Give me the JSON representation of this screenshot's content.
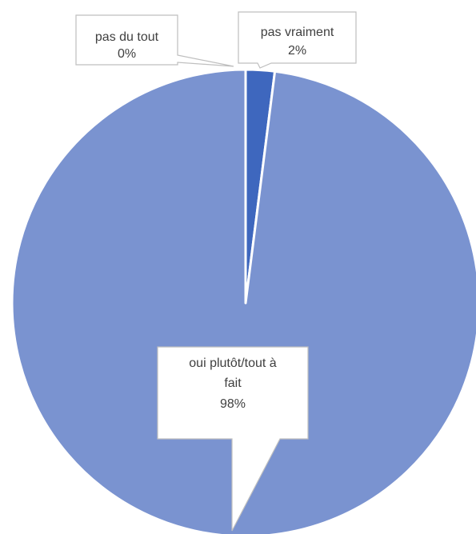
{
  "chart_data": {
    "type": "pie",
    "title": "",
    "categories": [
      "pas du tout",
      "pas vraiment",
      "oui plutôt/tout à fait"
    ],
    "values": [
      0,
      2,
      98
    ],
    "colors": [
      "#2F4F9F",
      "#3E67BE",
      "#7A93D0"
    ],
    "labels": [
      {
        "name_lines": [
          "pas du tout"
        ],
        "value_text": "0%"
      },
      {
        "name_lines": [
          "pas vraiment"
        ],
        "value_text": "2%"
      },
      {
        "name_lines": [
          "oui plutôt/tout à",
          "fait"
        ],
        "value_text": "98%"
      }
    ],
    "legend": "none"
  }
}
